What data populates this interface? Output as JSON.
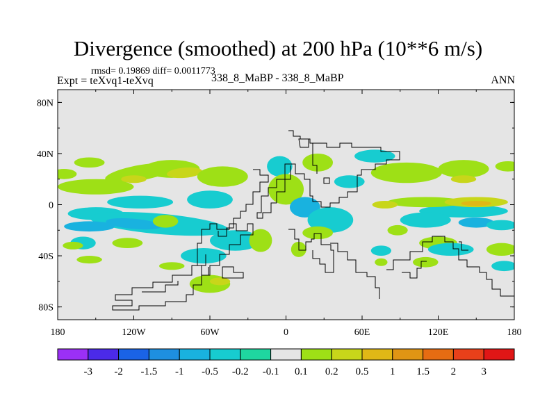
{
  "chart_data": {
    "type": "heatmap",
    "title": "Divergence (smoothed) at 200 hPa (10**6 m/s)",
    "stats": "rmsd= 0.19869 diff= 0.0011773",
    "expt": "Expt = teXvq1-teXvq",
    "case": "338_8_MaBP - 338_8_MaBP",
    "season": "ANN",
    "x_ticks": [
      {
        "v": -180,
        "label": "180"
      },
      {
        "v": -120,
        "label": "120W"
      },
      {
        "v": -60,
        "label": "60W"
      },
      {
        "v": 0,
        "label": "0"
      },
      {
        "v": 60,
        "label": "60E"
      },
      {
        "v": 120,
        "label": "120E"
      },
      {
        "v": 180,
        "label": "180"
      }
    ],
    "y_ticks": [
      {
        "v": 80,
        "label": "80N"
      },
      {
        "v": 40,
        "label": "40N"
      },
      {
        "v": 0,
        "label": "0"
      },
      {
        "v": -40,
        "label": "40S"
      },
      {
        "v": -80,
        "label": "80S"
      }
    ],
    "xlim": [
      -180,
      180
    ],
    "ylim": [
      -90,
      90
    ],
    "colorbar": {
      "colors": [
        "#9b30f5",
        "#4b2ae8",
        "#1a63e6",
        "#1e8fe0",
        "#19b2df",
        "#17ccd0",
        "#1fd6a0",
        "#e5e5e5",
        "#9ee016",
        "#c8d61a",
        "#e0b816",
        "#e09514",
        "#e66c12",
        "#e8401a",
        "#e01616"
      ],
      "labels": [
        "-3",
        "-2",
        "-1.5",
        "-1",
        "-0.5",
        "-0.2",
        "-0.1",
        "0.1",
        "0.2",
        "0.5",
        "1",
        "1.5",
        "2",
        "3"
      ]
    },
    "background_color": "#e5e5e5",
    "blobs": [
      {
        "lon": -150,
        "lat": 14,
        "rx": 30,
        "ry": 6,
        "rot": 0,
        "level": 8
      },
      {
        "lon": -115,
        "lat": 25,
        "rx": 28,
        "ry": 6,
        "rot": -10,
        "level": 8
      },
      {
        "lon": -90,
        "lat": 28,
        "rx": 22,
        "ry": 7,
        "rot": 0,
        "level": 8
      },
      {
        "lon": -120,
        "lat": 20,
        "rx": 10,
        "ry": 3,
        "rot": 0,
        "level": 9
      },
      {
        "lon": -80,
        "lat": 25,
        "rx": 14,
        "ry": 4,
        "rot": -5,
        "level": 9
      },
      {
        "lon": -175,
        "lat": 24,
        "rx": 10,
        "ry": 4,
        "rot": 0,
        "level": 8
      },
      {
        "lon": -155,
        "lat": 33,
        "rx": 12,
        "ry": 4,
        "rot": 0,
        "level": 8
      },
      {
        "lon": -50,
        "lat": 22,
        "rx": 20,
        "ry": 8,
        "rot": 0,
        "level": 8
      },
      {
        "lon": -115,
        "lat": 2,
        "rx": 26,
        "ry": 5,
        "rot": 0,
        "level": 5
      },
      {
        "lon": -60,
        "lat": 4,
        "rx": 18,
        "ry": 7,
        "rot": 0,
        "level": 5
      },
      {
        "lon": -150,
        "lat": -7,
        "rx": 22,
        "ry": 5,
        "rot": 0,
        "level": 5
      },
      {
        "lon": -100,
        "lat": -15,
        "rx": 55,
        "ry": 8,
        "rot": 5,
        "level": 5
      },
      {
        "lon": -120,
        "lat": -15,
        "rx": 22,
        "ry": 4,
        "rot": 5,
        "level": 4
      },
      {
        "lon": -155,
        "lat": -17,
        "rx": 20,
        "ry": 4,
        "rot": 0,
        "level": 4
      },
      {
        "lon": -40,
        "lat": -28,
        "rx": 20,
        "ry": 8,
        "rot": 0,
        "level": 5
      },
      {
        "lon": -65,
        "lat": -40,
        "rx": 18,
        "ry": 6,
        "rot": 0,
        "level": 5
      },
      {
        "lon": -160,
        "lat": -30,
        "rx": 10,
        "ry": 5,
        "rot": 0,
        "level": 5
      },
      {
        "lon": -95,
        "lat": -13,
        "rx": 10,
        "ry": 5,
        "rot": 0,
        "level": 8
      },
      {
        "lon": -125,
        "lat": -30,
        "rx": 12,
        "ry": 4,
        "rot": 0,
        "level": 8
      },
      {
        "lon": -168,
        "lat": -32,
        "rx": 8,
        "ry": 3,
        "rot": 0,
        "level": 8
      },
      {
        "lon": -90,
        "lat": -48,
        "rx": 10,
        "ry": 3,
        "rot": 0,
        "level": 8
      },
      {
        "lon": -155,
        "lat": -43,
        "rx": 10,
        "ry": 3,
        "rot": 0,
        "level": 8
      },
      {
        "lon": -60,
        "lat": -62,
        "rx": 16,
        "ry": 7,
        "rot": 0,
        "level": 8
      },
      {
        "lon": -52,
        "lat": -60,
        "rx": 8,
        "ry": 3,
        "rot": 0,
        "level": 9
      },
      {
        "lon": -5,
        "lat": 30,
        "rx": 10,
        "ry": 8,
        "rot": 0,
        "level": 5
      },
      {
        "lon": 25,
        "lat": 33,
        "rx": 12,
        "ry": 7,
        "rot": 0,
        "level": 8
      },
      {
        "lon": 0,
        "lat": 12,
        "rx": 14,
        "ry": 12,
        "rot": 0,
        "level": 8
      },
      {
        "lon": 15,
        "lat": -2,
        "rx": 12,
        "ry": 8,
        "rot": 0,
        "level": 4
      },
      {
        "lon": 35,
        "lat": -12,
        "rx": 18,
        "ry": 10,
        "rot": 0,
        "level": 5
      },
      {
        "lon": -20,
        "lat": -28,
        "rx": 9,
        "ry": 9,
        "rot": 0,
        "level": 8
      },
      {
        "lon": 25,
        "lat": -22,
        "rx": 12,
        "ry": 5,
        "rot": 0,
        "level": 8
      },
      {
        "lon": 10,
        "lat": -35,
        "rx": 6,
        "ry": 6,
        "rot": 0,
        "level": 8
      },
      {
        "lon": 70,
        "lat": 38,
        "rx": 16,
        "ry": 5,
        "rot": 0,
        "level": 5
      },
      {
        "lon": 50,
        "lat": 18,
        "rx": 12,
        "ry": 5,
        "rot": 0,
        "level": 5
      },
      {
        "lon": 95,
        "lat": 25,
        "rx": 28,
        "ry": 8,
        "rot": 0,
        "level": 8
      },
      {
        "lon": 140,
        "lat": 28,
        "rx": 20,
        "ry": 7,
        "rot": 0,
        "level": 8
      },
      {
        "lon": 140,
        "lat": 20,
        "rx": 10,
        "ry": 3,
        "rot": 0,
        "level": 9
      },
      {
        "lon": 175,
        "lat": 30,
        "rx": 10,
        "ry": 4,
        "rot": 0,
        "level": 8
      },
      {
        "lon": 140,
        "lat": -5,
        "rx": 35,
        "ry": 5,
        "rot": 0,
        "level": 5
      },
      {
        "lon": 110,
        "lat": -12,
        "rx": 20,
        "ry": 6,
        "rot": 0,
        "level": 5
      },
      {
        "lon": 150,
        "lat": -14,
        "rx": 14,
        "ry": 4,
        "rot": 0,
        "level": 4
      },
      {
        "lon": 170,
        "lat": -16,
        "rx": 12,
        "ry": 4,
        "rot": 0,
        "level": 5
      },
      {
        "lon": 110,
        "lat": 2,
        "rx": 30,
        "ry": 4,
        "rot": 0,
        "level": 8
      },
      {
        "lon": 150,
        "lat": 2,
        "rx": 25,
        "ry": 4,
        "rot": 0,
        "level": 9
      },
      {
        "lon": 150,
        "lat": 1,
        "rx": 12,
        "ry": 2,
        "rot": 0,
        "level": 10
      },
      {
        "lon": 78,
        "lat": 0,
        "rx": 10,
        "ry": 3,
        "rot": 0,
        "level": 9
      },
      {
        "lon": 88,
        "lat": -20,
        "rx": 8,
        "ry": 4,
        "rot": 0,
        "level": 8
      },
      {
        "lon": 120,
        "lat": -30,
        "rx": 15,
        "ry": 5,
        "rot": 0,
        "level": 8
      },
      {
        "lon": 170,
        "lat": -35,
        "rx": 12,
        "ry": 5,
        "rot": 0,
        "level": 8
      },
      {
        "lon": 110,
        "lat": -45,
        "rx": 10,
        "ry": 4,
        "rot": 0,
        "level": 8
      },
      {
        "lon": 130,
        "lat": -35,
        "rx": 18,
        "ry": 5,
        "rot": 0,
        "level": 5
      },
      {
        "lon": 75,
        "lat": -36,
        "rx": 8,
        "ry": 4,
        "rot": 0,
        "level": 5
      },
      {
        "lon": 172,
        "lat": -48,
        "rx": 10,
        "ry": 4,
        "rot": 0,
        "level": 5
      },
      {
        "lon": 75,
        "lat": -45,
        "rx": 5,
        "ry": 3,
        "rot": 0,
        "level": 8
      }
    ]
  }
}
